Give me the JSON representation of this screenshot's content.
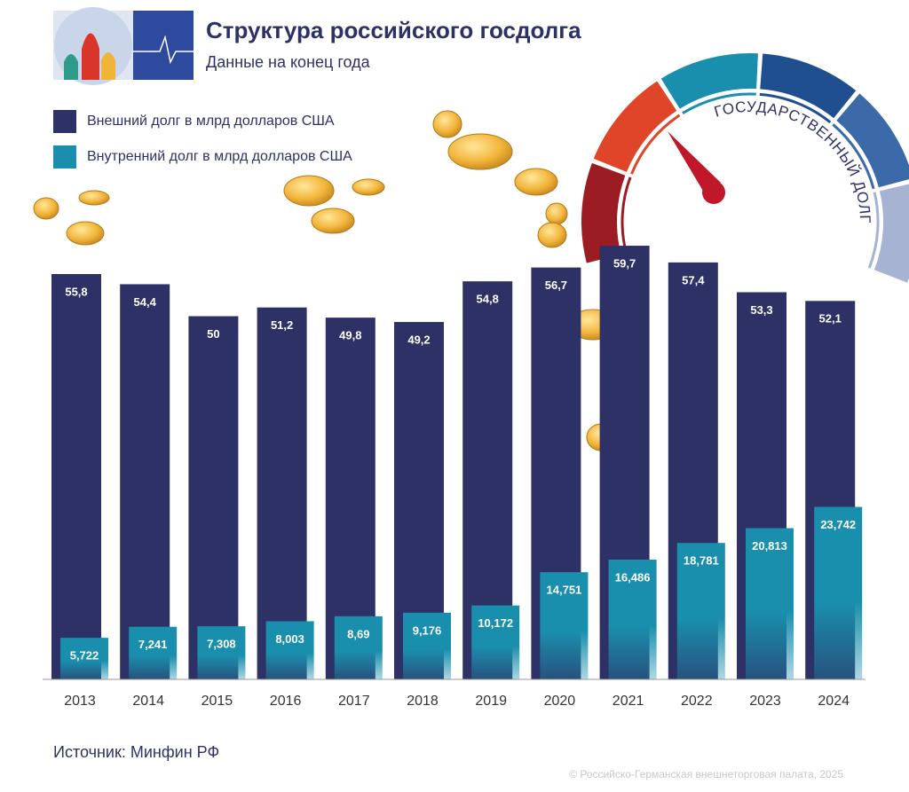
{
  "chart_data": {
    "type": "bar",
    "title": "Структура российского госдолга",
    "subtitle": "Данные на конец года",
    "categories": [
      "2013",
      "2014",
      "2015",
      "2016",
      "2017",
      "2018",
      "2019",
      "2020",
      "2021",
      "2022",
      "2023",
      "2024"
    ],
    "series": [
      {
        "name": "Внешний долг в млрд долларов США",
        "color": "#2e3165",
        "values": [
          55.8,
          54.4,
          50,
          51.2,
          49.8,
          49.2,
          54.8,
          56.7,
          59.7,
          57.4,
          53.3,
          52.1
        ],
        "value_labels": [
          "55,8",
          "54,4",
          "50",
          "51,2",
          "49,8",
          "49,2",
          "54,8",
          "56,7",
          "59,7",
          "57,4",
          "53,3",
          "52,1"
        ]
      },
      {
        "name": "Внутренний долг в млрд долларов США",
        "color": "#1a8fad",
        "values": [
          5.722,
          7.241,
          7.308,
          8.003,
          8.69,
          9.176,
          10.172,
          14.751,
          16.486,
          18.781,
          20.813,
          23.742
        ],
        "value_labels": [
          "5,722",
          "7,241",
          "7,308",
          "8,003",
          "8,69",
          "9,176",
          "10,172",
          "14,751",
          "16,486",
          "18,781",
          "20,813",
          "23,742"
        ]
      }
    ],
    "gauge_text": "ГОСУДАРСТВЕННЫЙ ДОЛГ",
    "source": "Источник: Минфин РФ",
    "copyright": "© Российско-Германская внешнеторговая палата, 2025"
  }
}
